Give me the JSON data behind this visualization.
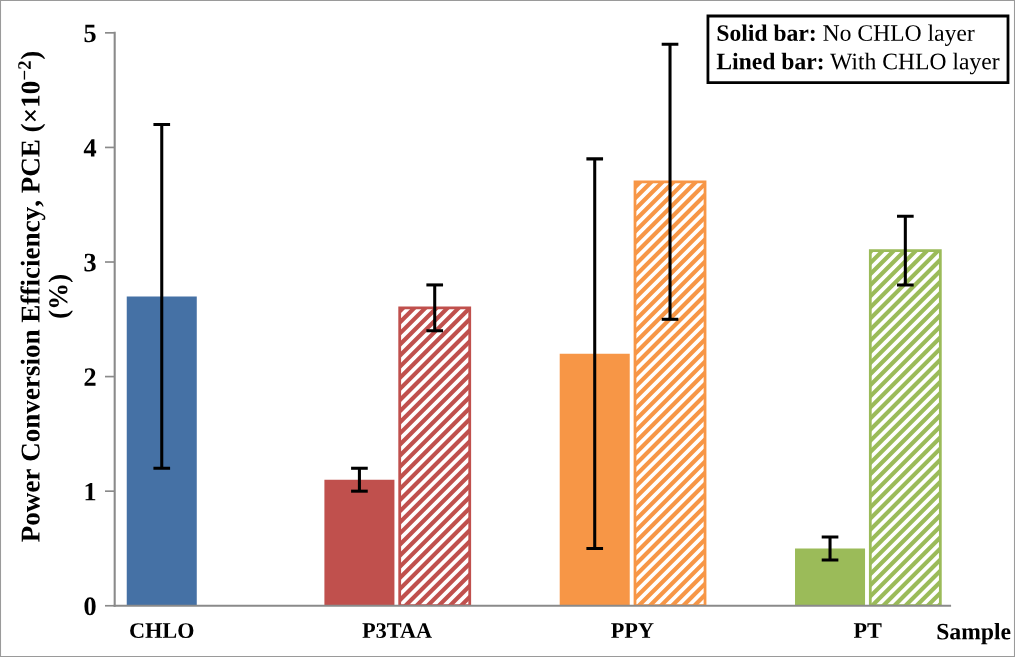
{
  "chart_data": {
    "type": "bar",
    "ylabel": "Power Conversion Efficiency, PCE (×10$^{−2}$)\n(%)",
    "xlabel": "Sample",
    "categories": [
      "CHLO",
      "P3TAA",
      "PPY",
      "PT"
    ],
    "series": [
      {
        "colors": [
          "#4571a5",
          "#c0504d",
          "#f79646",
          "#9bbb59"
        ],
        "values": [
          2.7,
          1.1,
          2.2,
          0.5
        ],
        "errors": [
          1.5,
          0.1,
          1.7,
          0.1
        ]
      },
      {
        "colors": [
          null,
          "#c0504d",
          "#f79646",
          "#9bbb59"
        ],
        "values": [
          null,
          2.6,
          3.7,
          3.1
        ],
        "errors": [
          null,
          0.2,
          1.2,
          0.3
        ]
      }
    ],
    "ylim": [
      0,
      5
    ],
    "yticks": [
      0,
      1,
      2,
      3,
      4,
      5
    ],
    "annotations": [
      "Solid bar: No CHLO layer",
      "Lined bar: With CHLO layer"
    ]
  }
}
